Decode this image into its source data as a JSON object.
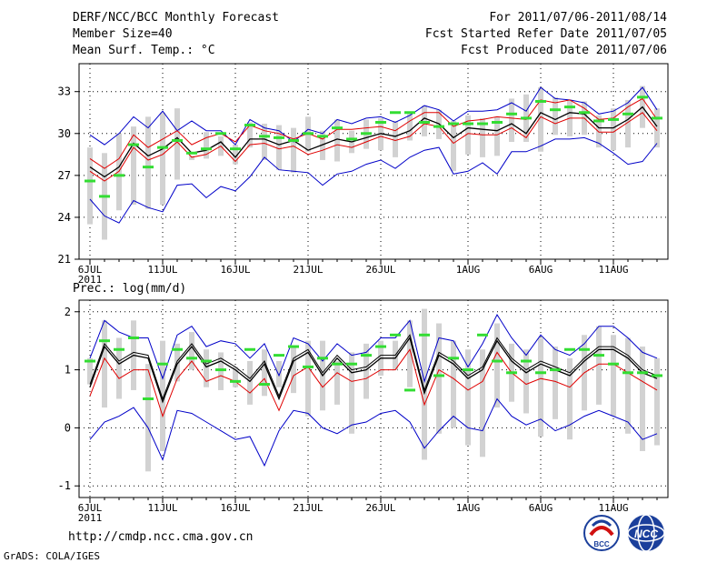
{
  "header": {
    "title": "DERF/NCC/BCC Monthly Forecast",
    "member_size": "Member Size=40",
    "temp_label": "Mean Surf. Temp.: °C",
    "period": "For 2011/07/06-2011/08/14",
    "refer_date": "Fcst Started Refer Date 2011/07/05",
    "produced_date": "Fcst Produced Date 2011/07/06"
  },
  "footer": {
    "url": "http://cmdp.ncc.cma.gov.cn",
    "grads": "GrADS: COLA/IGES",
    "logo_bcc": "BCC",
    "logo_ncc": "NCC"
  },
  "colors": {
    "envelope": "#0000c8",
    "spread": "#e00000",
    "mean": "#000000",
    "observed": "#33dd33",
    "box": "#d2d2d2"
  },
  "chart_data": [
    {
      "type": "line",
      "title": "Mean Surf. Temp.: °C",
      "xlabel": "",
      "ylabel": "°C",
      "ylim": [
        21,
        35
      ],
      "yticks": [
        21,
        24,
        27,
        30,
        33
      ],
      "x_labels": [
        "6JUL",
        "11JUL",
        "16JUL",
        "21JUL",
        "26JUL",
        "1AUG",
        "6AUG",
        "11AUG"
      ],
      "x_label_days": [
        1,
        6,
        11,
        16,
        21,
        27,
        32,
        37
      ],
      "year_label": "2011",
      "days": 40,
      "series": [
        {
          "name": "max",
          "color": "#0000c8",
          "values": [
            29.9,
            29.2,
            30.0,
            31.2,
            30.4,
            31.6,
            30.2,
            30.9,
            30.2,
            30.2,
            29.2,
            31.0,
            30.4,
            30.2,
            29.4,
            30.3,
            30.0,
            31.0,
            30.7,
            31.1,
            31.2,
            30.8,
            31.3,
            32.0,
            31.7,
            30.9,
            31.6,
            31.6,
            31.7,
            32.2,
            31.6,
            33.3,
            32.5,
            32.4,
            32.2,
            31.4,
            31.6,
            32.2,
            33.3,
            31.7
          ]
        },
        {
          "name": "upper",
          "color": "#e00000",
          "values": [
            28.2,
            27.5,
            28.2,
            29.9,
            29.0,
            29.6,
            30.2,
            29.2,
            29.7,
            30.0,
            29.4,
            30.6,
            30.2,
            30.0,
            29.6,
            30.0,
            29.6,
            30.3,
            30.3,
            30.4,
            30.5,
            30.2,
            30.9,
            31.5,
            31.5,
            30.5,
            30.9,
            31.0,
            31.2,
            31.1,
            31.0,
            32.4,
            32.2,
            32.4,
            31.8,
            31.0,
            31.1,
            31.9,
            32.5,
            31.0
          ]
        },
        {
          "name": "mean",
          "color": "#000000",
          "values": [
            27.6,
            26.9,
            27.6,
            29.3,
            28.4,
            28.9,
            29.7,
            28.6,
            28.8,
            29.4,
            28.3,
            29.6,
            29.6,
            29.2,
            29.5,
            28.8,
            29.2,
            29.6,
            29.4,
            29.7,
            30.0,
            29.8,
            30.2,
            31.1,
            30.7,
            29.7,
            30.4,
            30.3,
            30.2,
            30.7,
            30.0,
            31.5,
            31.0,
            31.5,
            31.4,
            30.4,
            30.4,
            31.0,
            31.9,
            30.5
          ]
        },
        {
          "name": "lower",
          "color": "#e00000",
          "values": [
            27.3,
            26.6,
            27.3,
            29.0,
            28.1,
            28.5,
            29.4,
            28.3,
            28.5,
            29.1,
            28.0,
            29.2,
            29.3,
            28.9,
            29.1,
            28.5,
            28.8,
            29.2,
            29.0,
            29.4,
            29.8,
            29.5,
            29.8,
            30.7,
            30.5,
            29.3,
            30.0,
            29.9,
            29.9,
            30.4,
            29.7,
            31.2,
            30.7,
            31.1,
            31.1,
            30.1,
            30.1,
            30.8,
            31.5,
            30.2
          ]
        },
        {
          "name": "min",
          "color": "#0000c8",
          "values": [
            25.3,
            24.1,
            23.6,
            25.2,
            24.7,
            24.4,
            26.3,
            26.4,
            25.4,
            26.2,
            25.9,
            26.9,
            28.3,
            27.4,
            27.3,
            27.2,
            26.3,
            27.1,
            27.3,
            27.8,
            28.1,
            27.5,
            28.3,
            28.8,
            29.0,
            27.1,
            27.3,
            27.9,
            27.1,
            28.7,
            28.7,
            29.1,
            29.6,
            29.6,
            29.7,
            29.3,
            28.6,
            27.8,
            28.0,
            29.3
          ]
        }
      ],
      "boxes": {
        "low": [
          23.5,
          22.4,
          24.5,
          24.9,
          24.6,
          24.9,
          26.7,
          28.1,
          28.2,
          28.4,
          27.8,
          29.0,
          28.1,
          27.4,
          27.2,
          28.7,
          28.1,
          28.0,
          28.6,
          28.9,
          28.8,
          28.3,
          29.5,
          29.8,
          29.6,
          27.3,
          28.5,
          28.3,
          28.4,
          29.4,
          29.4,
          28.7,
          29.9,
          29.8,
          29.9,
          29.0,
          28.8,
          29.0,
          30.4,
          29.0
        ],
        "high": [
          29.0,
          28.6,
          30.0,
          30.5,
          31.2,
          31.5,
          31.8,
          28.4,
          30.1,
          29.8,
          29.2,
          30.8,
          30.7,
          30.6,
          30.4,
          31.2,
          30.2,
          31.0,
          30.2,
          31.0,
          31.1,
          30.9,
          31.4,
          32.0,
          31.7,
          30.9,
          31.3,
          31.1,
          31.2,
          32.5,
          32.8,
          33.3,
          32.6,
          32.4,
          32.3,
          31.3,
          31.8,
          32.4,
          33.4,
          31.8
        ]
      },
      "observed": [
        26.6,
        25.5,
        27.0,
        29.2,
        27.6,
        29.0,
        29.5,
        28.6,
        28.9,
        30.0,
        28.9,
        30.6,
        29.8,
        29.7,
        29.5,
        30.0,
        29.8,
        30.4,
        29.6,
        30.0,
        30.8,
        31.5,
        31.5,
        30.8,
        30.5,
        30.7,
        30.7,
        30.7,
        30.8,
        31.4,
        31.1,
        32.3,
        31.7,
        31.9,
        31.5,
        30.9,
        31.0,
        31.4,
        32.6,
        31.1
      ]
    },
    {
      "type": "line",
      "title": "Prec.: log(mm/d)",
      "xlabel": "",
      "ylabel": "log(mm/d)",
      "ylim": [
        -1.2,
        2.2
      ],
      "yticks": [
        -1,
        0,
        1,
        2
      ],
      "x_labels": [
        "6JUL",
        "11JUL",
        "16JUL",
        "21JUL",
        "26JUL",
        "1AUG",
        "6AUG",
        "11AUG"
      ],
      "x_label_days": [
        1,
        6,
        11,
        16,
        21,
        27,
        32,
        37
      ],
      "year_label": "2011",
      "days": 40,
      "series": [
        {
          "name": "max",
          "color": "#0000c8",
          "values": [
            1.2,
            1.85,
            1.65,
            1.55,
            1.55,
            0.85,
            1.6,
            1.75,
            1.4,
            1.5,
            1.45,
            1.2,
            1.45,
            0.9,
            1.55,
            1.45,
            1.15,
            1.45,
            1.25,
            1.3,
            1.55,
            1.55,
            1.85,
            0.8,
            1.55,
            1.5,
            1.05,
            1.45,
            1.95,
            1.55,
            1.25,
            1.6,
            1.35,
            1.25,
            1.45,
            1.75,
            1.75,
            1.55,
            1.3,
            1.2
          ]
        },
        {
          "name": "upper",
          "color": "#000000",
          "values": [
            0.75,
            1.45,
            1.15,
            1.3,
            1.25,
            0.5,
            1.15,
            1.45,
            1.1,
            1.2,
            1.05,
            0.85,
            1.15,
            0.55,
            1.2,
            1.35,
            0.95,
            1.25,
            1.0,
            1.05,
            1.25,
            1.25,
            1.6,
            0.65,
            1.3,
            1.15,
            0.9,
            1.05,
            1.55,
            1.2,
            1.0,
            1.15,
            1.05,
            0.95,
            1.2,
            1.4,
            1.4,
            1.25,
            1.0,
            0.9
          ]
        },
        {
          "name": "mean",
          "color": "#000000",
          "values": [
            0.7,
            1.4,
            1.1,
            1.25,
            1.2,
            0.45,
            1.1,
            1.4,
            1.05,
            1.15,
            1.0,
            0.8,
            1.1,
            0.5,
            1.15,
            1.3,
            0.9,
            1.2,
            0.95,
            1.0,
            1.2,
            1.2,
            1.55,
            0.6,
            1.25,
            1.1,
            0.85,
            1.0,
            1.5,
            1.15,
            0.95,
            1.1,
            1.0,
            0.9,
            1.15,
            1.35,
            1.35,
            1.2,
            0.95,
            0.85
          ]
        },
        {
          "name": "lower",
          "color": "#e00000",
          "values": [
            0.55,
            1.2,
            0.85,
            1.0,
            1.0,
            0.2,
            0.85,
            1.15,
            0.8,
            0.9,
            0.8,
            0.6,
            0.85,
            0.3,
            0.9,
            1.05,
            0.7,
            0.95,
            0.8,
            0.85,
            1.0,
            1.0,
            1.35,
            0.4,
            1.0,
            0.85,
            0.65,
            0.8,
            1.3,
            0.95,
            0.75,
            0.85,
            0.8,
            0.7,
            0.95,
            1.1,
            1.1,
            0.95,
            0.8,
            0.65
          ]
        },
        {
          "name": "min",
          "color": "#0000c8",
          "values": [
            -0.2,
            0.1,
            0.2,
            0.35,
            0.0,
            -0.55,
            0.3,
            0.25,
            0.1,
            -0.05,
            -0.2,
            -0.15,
            -0.65,
            -0.05,
            0.3,
            0.25,
            0.0,
            -0.1,
            0.05,
            0.1,
            0.25,
            0.3,
            0.1,
            -0.35,
            -0.05,
            0.2,
            0.0,
            -0.05,
            0.5,
            0.2,
            0.05,
            0.15,
            -0.05,
            0.05,
            0.2,
            0.3,
            0.2,
            0.1,
            -0.2,
            -0.1
          ]
        }
      ],
      "boxes": {
        "low": [
          0.75,
          0.35,
          0.5,
          0.65,
          -0.75,
          -0.4,
          0.8,
          1.0,
          0.7,
          0.65,
          0.7,
          0.4,
          0.55,
          0.7,
          0.6,
          0.2,
          0.3,
          0.4,
          -0.1,
          0.5,
          0.9,
          1.0,
          0.7,
          -0.55,
          -0.1,
          0.0,
          -0.3,
          -0.5,
          0.35,
          0.45,
          0.25,
          -0.15,
          0.15,
          -0.2,
          0.3,
          0.4,
          0.2,
          -0.1,
          -0.4,
          -0.3
        ],
        "high": [
          1.2,
          1.85,
          1.55,
          1.85,
          1.1,
          1.5,
          1.45,
          1.65,
          1.35,
          1.3,
          1.05,
          1.15,
          1.35,
          1.15,
          1.4,
          1.5,
          1.5,
          1.15,
          1.3,
          1.45,
          1.5,
          1.5,
          1.85,
          2.05,
          1.8,
          1.5,
          1.35,
          1.35,
          1.8,
          1.45,
          1.35,
          1.55,
          1.4,
          1.2,
          1.6,
          1.75,
          1.6,
          1.55,
          1.4,
          1.2
        ]
      },
      "observed": [
        1.15,
        1.5,
        1.35,
        1.55,
        0.5,
        1.1,
        1.35,
        1.2,
        1.15,
        1.0,
        0.8,
        1.35,
        0.75,
        1.25,
        1.4,
        1.05,
        1.2,
        1.1,
        1.1,
        1.25,
        1.4,
        1.6,
        0.65,
        1.6,
        0.9,
        1.2,
        1.0,
        1.6,
        1.15,
        0.95,
        1.15,
        0.95,
        1.0,
        1.35,
        1.35,
        1.25,
        1.1,
        0.95,
        0.95,
        0.9
      ]
    }
  ]
}
